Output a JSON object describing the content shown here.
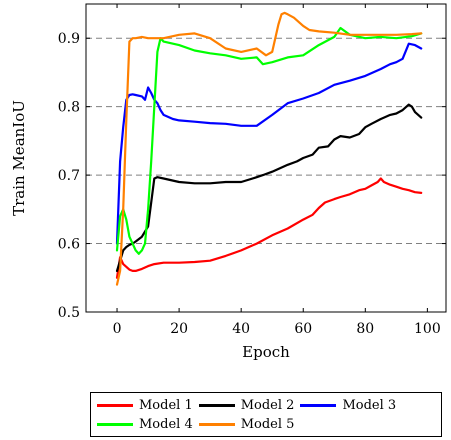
{
  "chart_data": {
    "type": "line",
    "title": "",
    "xlabel": "Epoch",
    "ylabel": "Train MeanIoU",
    "xlim": [
      -10,
      106
    ],
    "ylim": [
      0.5,
      0.95
    ],
    "xticks": [
      0,
      20,
      40,
      60,
      80,
      100
    ],
    "xtick_labels": [
      "0",
      "20",
      "40",
      "60",
      "80",
      "100"
    ],
    "yticks": [
      0.5,
      0.6,
      0.7,
      0.8,
      0.9
    ],
    "ytick_labels": [
      "0.5",
      "0.6",
      "0.7",
      "0.8",
      "0.9"
    ],
    "grid": "horizontal dashed",
    "legend_position": "below",
    "series": [
      {
        "name": "Model 1",
        "color": "#ff0000",
        "x": [
          0,
          1,
          2,
          3,
          4,
          5,
          6,
          8,
          10,
          12,
          15,
          20,
          25,
          30,
          35,
          40,
          45,
          50,
          55,
          60,
          63,
          65,
          67,
          70,
          72,
          75,
          78,
          80,
          82,
          84,
          85,
          86,
          88,
          90,
          92,
          94,
          96,
          98
        ],
        "values": [
          0.55,
          0.58,
          0.57,
          0.566,
          0.562,
          0.56,
          0.56,
          0.563,
          0.567,
          0.57,
          0.572,
          0.572,
          0.573,
          0.575,
          0.582,
          0.59,
          0.6,
          0.612,
          0.622,
          0.635,
          0.642,
          0.652,
          0.66,
          0.665,
          0.668,
          0.672,
          0.678,
          0.68,
          0.685,
          0.69,
          0.695,
          0.69,
          0.686,
          0.683,
          0.68,
          0.678,
          0.675,
          0.674
        ]
      },
      {
        "name": "Model 2",
        "color": "#000000",
        "x": [
          0,
          1,
          2,
          3,
          4,
          5,
          6,
          8,
          10,
          11,
          12,
          13,
          15,
          20,
          25,
          30,
          35,
          40,
          45,
          47,
          50,
          55,
          58,
          60,
          63,
          65,
          68,
          70,
          72,
          75,
          78,
          80,
          82,
          85,
          88,
          90,
          92,
          94,
          95,
          96,
          98
        ],
        "values": [
          0.56,
          0.575,
          0.59,
          0.595,
          0.598,
          0.6,
          0.603,
          0.61,
          0.625,
          0.66,
          0.695,
          0.697,
          0.695,
          0.69,
          0.688,
          0.688,
          0.69,
          0.69,
          0.697,
          0.7,
          0.705,
          0.715,
          0.72,
          0.725,
          0.73,
          0.74,
          0.742,
          0.752,
          0.757,
          0.755,
          0.76,
          0.77,
          0.775,
          0.782,
          0.788,
          0.79,
          0.795,
          0.803,
          0.8,
          0.792,
          0.784
        ]
      },
      {
        "name": "Model 3",
        "color": "#0000ff",
        "x": [
          0,
          1,
          2,
          3,
          4,
          5,
          6,
          8,
          9,
          10,
          11,
          12,
          13,
          14,
          15,
          18,
          20,
          25,
          30,
          35,
          40,
          45,
          50,
          55,
          60,
          65,
          70,
          75,
          80,
          85,
          88,
          90,
          92,
          94,
          96,
          98
        ],
        "values": [
          0.6,
          0.72,
          0.77,
          0.81,
          0.817,
          0.818,
          0.817,
          0.815,
          0.81,
          0.828,
          0.82,
          0.81,
          0.805,
          0.795,
          0.788,
          0.782,
          0.78,
          0.778,
          0.776,
          0.775,
          0.772,
          0.772,
          0.788,
          0.805,
          0.812,
          0.82,
          0.832,
          0.838,
          0.845,
          0.855,
          0.862,
          0.865,
          0.87,
          0.892,
          0.89,
          0.885
        ]
      },
      {
        "name": "Model 4",
        "color": "#00ff00",
        "x": [
          0,
          1,
          2,
          3,
          4,
          5,
          6,
          7,
          8,
          9,
          10,
          11,
          12,
          13,
          14,
          15,
          20,
          25,
          30,
          35,
          40,
          45,
          47,
          50,
          55,
          60,
          65,
          70,
          72,
          75,
          80,
          85,
          90,
          95,
          98
        ],
        "values": [
          0.59,
          0.64,
          0.65,
          0.635,
          0.61,
          0.6,
          0.59,
          0.585,
          0.59,
          0.6,
          0.65,
          0.72,
          0.8,
          0.88,
          0.9,
          0.895,
          0.89,
          0.882,
          0.878,
          0.875,
          0.87,
          0.872,
          0.862,
          0.865,
          0.872,
          0.875,
          0.89,
          0.902,
          0.915,
          0.905,
          0.9,
          0.902,
          0.9,
          0.903,
          0.907
        ]
      },
      {
        "name": "Model 5",
        "color": "#ff8000",
        "x": [
          0,
          1,
          2,
          3,
          4,
          5,
          6,
          8,
          10,
          15,
          20,
          25,
          30,
          35,
          40,
          45,
          48,
          50,
          52,
          53,
          54,
          55,
          57,
          60,
          62,
          65,
          70,
          75,
          80,
          85,
          90,
          95,
          98
        ],
        "values": [
          0.54,
          0.56,
          0.65,
          0.78,
          0.895,
          0.9,
          0.9,
          0.902,
          0.9,
          0.9,
          0.905,
          0.907,
          0.9,
          0.885,
          0.88,
          0.885,
          0.875,
          0.88,
          0.92,
          0.935,
          0.937,
          0.935,
          0.93,
          0.918,
          0.912,
          0.91,
          0.908,
          0.905,
          0.905,
          0.905,
          0.905,
          0.906,
          0.907
        ]
      }
    ]
  }
}
